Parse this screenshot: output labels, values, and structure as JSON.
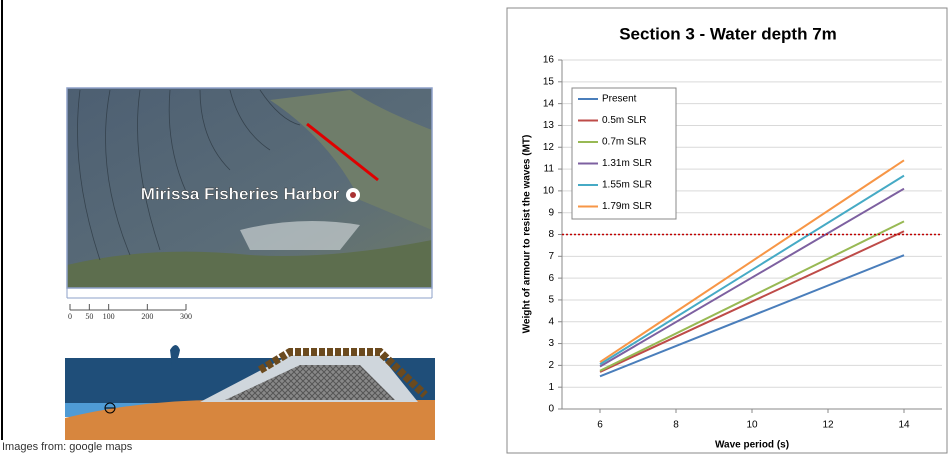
{
  "map": {
    "label": "Mirissa Fisheries Harbor",
    "scale_ticks": [
      0,
      50,
      100,
      200,
      300
    ]
  },
  "caption": "Images from: google maps",
  "chart_data": {
    "type": "line",
    "title": "Section 3 - Water depth 7m",
    "x_label": "Wave period (s)",
    "y_label": "Weight of armour to resist the waves (MT)",
    "x": [
      6,
      14
    ],
    "series": [
      {
        "name": "Present",
        "color": "#4a7ebb",
        "values": [
          1.5,
          7.05
        ]
      },
      {
        "name": "0.5m SLR",
        "color": "#be4b48",
        "values": [
          1.7,
          8.15
        ]
      },
      {
        "name": "0.7m SLR",
        "color": "#98b954",
        "values": [
          1.75,
          8.6
        ]
      },
      {
        "name": "1.31m SLR",
        "color": "#7d60a0",
        "values": [
          1.95,
          10.1
        ]
      },
      {
        "name": "1.55m SLR",
        "color": "#46aac5",
        "values": [
          2.05,
          10.7
        ]
      },
      {
        "name": "1.79m SLR",
        "color": "#f79646",
        "values": [
          2.15,
          11.4
        ]
      }
    ],
    "hline": {
      "value": 8,
      "color": "#c00000"
    },
    "xlim": [
      5,
      15
    ],
    "xticks": [
      6,
      8,
      10,
      12,
      14
    ],
    "ylim": [
      0,
      16
    ],
    "yticks": [
      0,
      1,
      2,
      3,
      4,
      5,
      6,
      7,
      8,
      9,
      10,
      11,
      12,
      13,
      14,
      15,
      16
    ],
    "grid": true,
    "legend": "upper-left"
  }
}
